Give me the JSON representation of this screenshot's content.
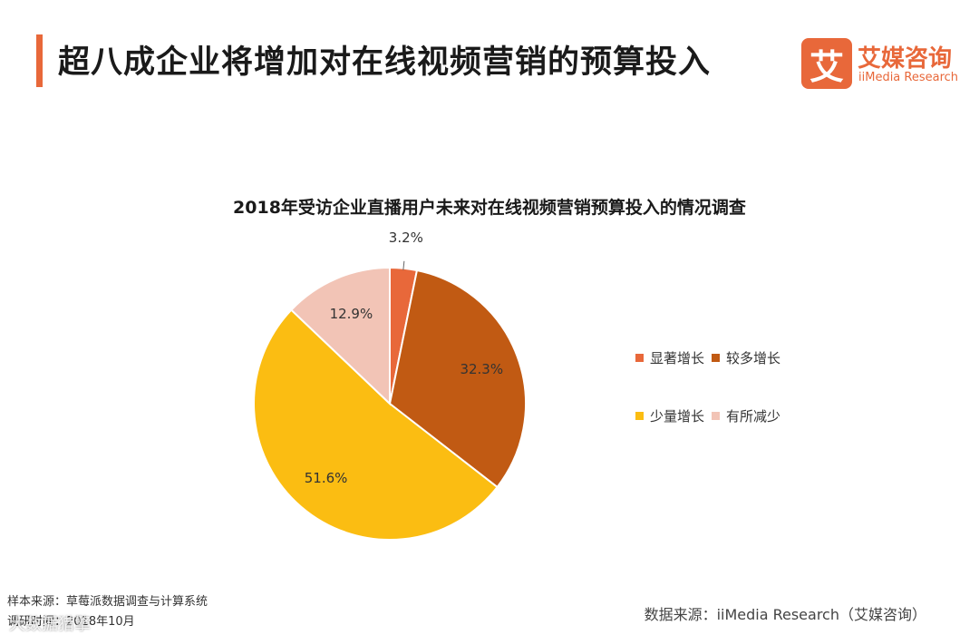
{
  "header": {
    "title": "超八成企业将增加对在线视频营销的预算投入",
    "accent_color": "#e8683a"
  },
  "logo": {
    "mark": "艾",
    "name": "艾媒咨询",
    "sub": "iiMedia Research",
    "color": "#e8683a"
  },
  "chart_data": {
    "type": "pie",
    "title": "2018年受访企业直播用户未来对在线视频营销预算投入的情况调查",
    "categories": [
      "显著增长",
      "较多增长",
      "少量增长",
      "有所减少"
    ],
    "values": [
      3.2,
      32.3,
      51.6,
      12.9
    ],
    "value_labels": [
      "3.2%",
      "32.3%",
      "51.6%",
      "12.9%"
    ],
    "colors": [
      "#e8683a",
      "#c15a13",
      "#fbbd12",
      "#f2c4b6"
    ],
    "start_angle_deg": 0,
    "direction": "clockwise",
    "legend_position": "right"
  },
  "footer": {
    "sample_source": "样本来源：草莓派数据调查与计算系统",
    "survey_time": "调研时间：2018年10月",
    "data_source": "数据来源：iiMedia Research（艾媒咨询）",
    "watermark": "大数据猎擎"
  }
}
